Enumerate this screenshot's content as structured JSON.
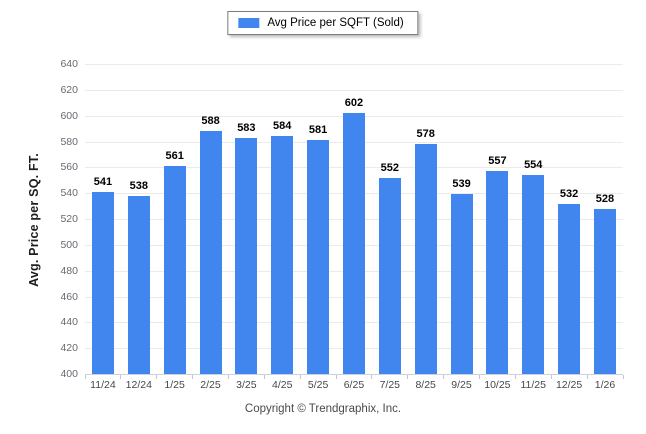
{
  "legend": {
    "label": "Avg Price per SQFT (Sold)",
    "swatch_color": "#4186ef"
  },
  "chart_data": {
    "type": "bar",
    "title": "",
    "xlabel": "",
    "ylabel": "Avg. Price per SQ. FT.",
    "categories": [
      "11/24",
      "12/24",
      "1/25",
      "2/25",
      "3/25",
      "4/25",
      "5/25",
      "6/25",
      "7/25",
      "8/25",
      "9/25",
      "10/25",
      "11/25",
      "12/25",
      "1/26"
    ],
    "series": [
      {
        "name": "Avg Price per SQFT (Sold)",
        "values": [
          541,
          538,
          561,
          588,
          583,
          584,
          581,
          602,
          552,
          578,
          539,
          557,
          554,
          532,
          528
        ]
      }
    ],
    "ylim": [
      400,
      640
    ],
    "ytick_step": 20,
    "bar_color": "#4186ef",
    "grid": true,
    "gridline_color": "#ebebeb",
    "legend_position": "top-center",
    "data_labels": true
  },
  "footer": {
    "copyright": "Copyright © Trendgraphix, Inc."
  }
}
